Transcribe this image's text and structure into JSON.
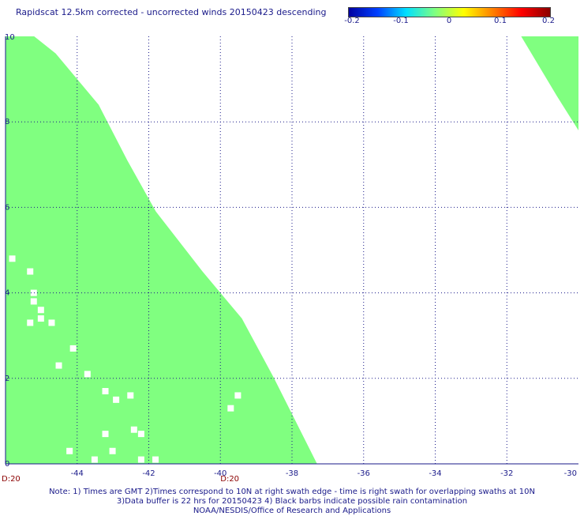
{
  "title": "Rapidscat 12.5km corrected - uncorrected winds 20150423 descending",
  "colorbar": {
    "ticks": [
      "-0.2",
      "-0.1",
      "0",
      "0.1",
      "0.2"
    ],
    "stops": [
      "#0000a0",
      "#0040ff",
      "#00e0ff",
      "#80ff80",
      "#ffff00",
      "#ff8000",
      "#ff0000",
      "#8b0000"
    ]
  },
  "colors": {
    "swath": "#80ff80",
    "text": "#1a1a8a",
    "grid": "#1a1a8a",
    "time_label": "#8b0000"
  },
  "chart_data": {
    "type": "heatmap",
    "title": "Rapidscat 12.5km corrected - uncorrected winds 20150423 descending",
    "xlim": [
      -46,
      -30
    ],
    "ylim": [
      0,
      10
    ],
    "x_ticks": [
      -44,
      -42,
      -40,
      -38,
      -36,
      -34,
      -32,
      -30
    ],
    "x_tick_labels": [
      "-44",
      "-42",
      "-40",
      "-38",
      "-36",
      "-34",
      "-32",
      "-30"
    ],
    "y_ticks": [
      0,
      2,
      4,
      6,
      8,
      10
    ],
    "y_tick_labels": [
      "0",
      "2",
      "4",
      "6",
      "8",
      "10"
    ],
    "grid": true,
    "swath_main_edge": [
      [
        -45.2,
        10
      ],
      [
        -44.6,
        9.6
      ],
      [
        -43.9,
        8.9
      ],
      [
        -43.4,
        8.4
      ],
      [
        -42.6,
        7.1
      ],
      [
        -41.8,
        5.9
      ],
      [
        -40.5,
        4.5
      ],
      [
        -39.4,
        3.4
      ],
      [
        -38.5,
        2.0
      ],
      [
        -37.3,
        0
      ]
    ],
    "swath_ne": [
      [
        -31.6,
        10
      ],
      [
        -30.0,
        10
      ],
      [
        -30.0,
        7.8
      ],
      [
        -30.6,
        8.6
      ],
      [
        -31.6,
        10
      ]
    ],
    "time_labels": [
      {
        "x": -46,
        "text": "D:20"
      },
      {
        "x": -40,
        "text": "D:20"
      }
    ],
    "missing_cells": [
      [
        -45.9,
        4.8
      ],
      [
        -45.4,
        4.5
      ],
      [
        -45.3,
        4.0
      ],
      [
        -45.3,
        3.8
      ],
      [
        -45.1,
        3.6
      ],
      [
        -45.1,
        3.4
      ],
      [
        -44.8,
        3.3
      ],
      [
        -45.4,
        3.3
      ],
      [
        -44.2,
        2.7
      ],
      [
        -44.6,
        2.3
      ],
      [
        -43.8,
        2.1
      ],
      [
        -43.3,
        1.7
      ],
      [
        -43.0,
        1.5
      ],
      [
        -42.6,
        1.6
      ],
      [
        -43.3,
        0.7
      ],
      [
        -42.5,
        0.8
      ],
      [
        -42.3,
        0.7
      ],
      [
        -44.3,
        0.3
      ],
      [
        -43.6,
        0.1
      ],
      [
        -43.1,
        0.3
      ],
      [
        -42.3,
        0.1
      ],
      [
        -41.9,
        0.1
      ],
      [
        -39.8,
        1.3
      ],
      [
        -39.6,
        1.6
      ]
    ],
    "notes": [
      "Note: 1) Times are GMT 2)Times correspond to 10N at right swath edge - time is right swath for overlapping swaths at 10N",
      "3)Data buffer is 22 hrs for 20150423 4) Black barbs indicate possible rain contamination",
      "NOAA/NESDIS/Office of Research and Applications"
    ]
  }
}
